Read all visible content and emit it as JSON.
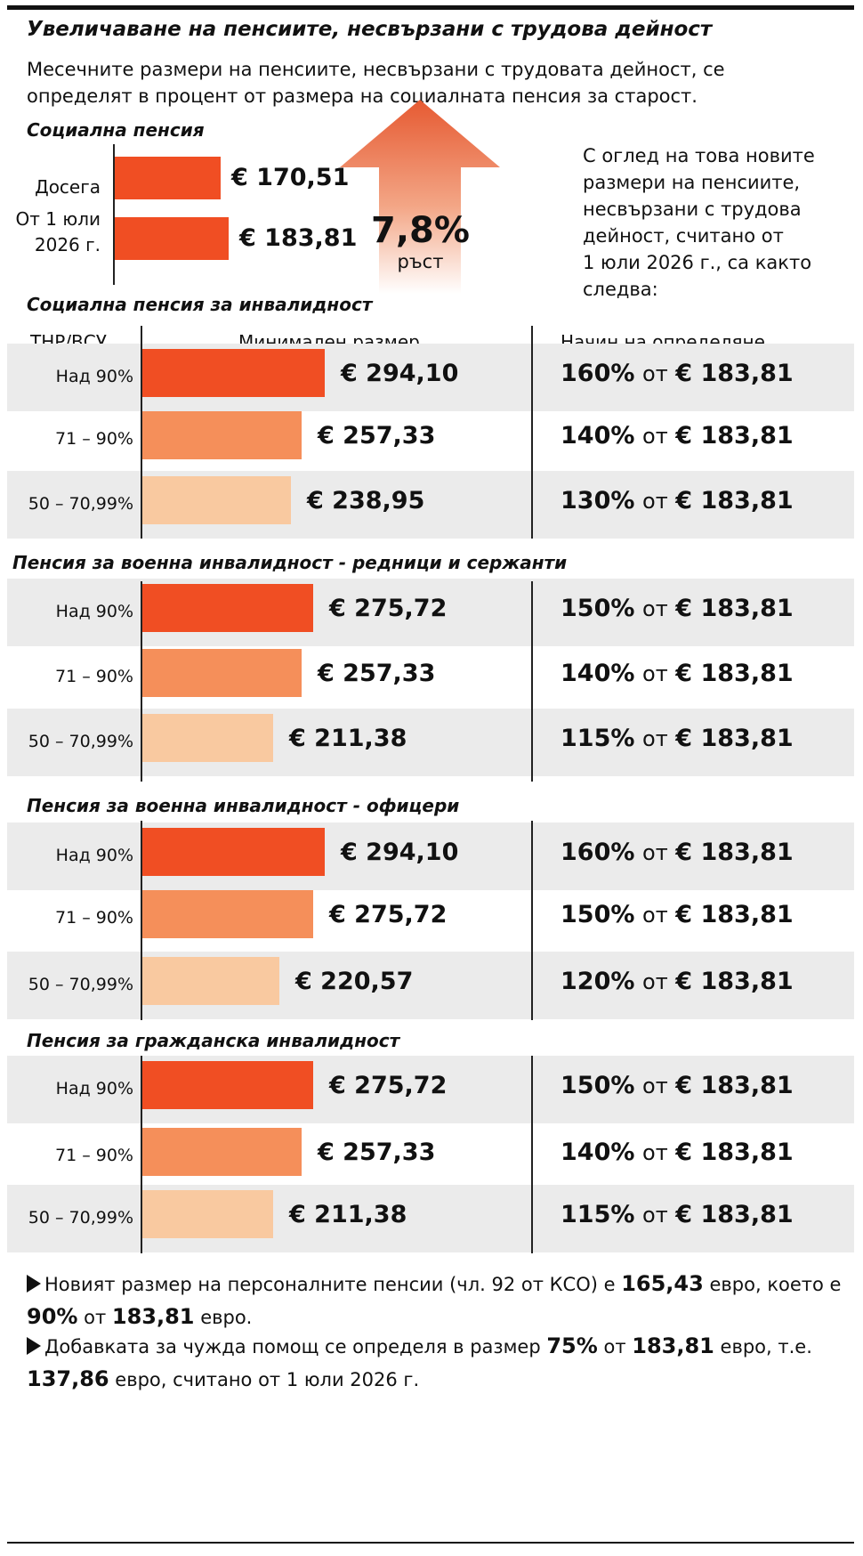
{
  "title": "Увеличаване на пенсиите, несвързани с трудова дейност",
  "intro": "Месечните размери на пенсиите, несвързани с трудовата дейност, се\nопределят в процент от размера на социалната пенсия за старост.",
  "growth": {
    "value": "7,8%",
    "label": "ръст"
  },
  "side_text": "С оглед на това новите\nразмери на пенсиите,\nнесвързани с трудова\nдейност, считано от\n1 юли 2026 г., са както\nследва:",
  "column_headers": {
    "category": "ТНР/ВСУ",
    "size": "Минимален размер",
    "method": "Начин на определяне"
  },
  "colors": {
    "level1": "#f04e23",
    "level2": "#f58f5a",
    "level3": "#f9c9a0",
    "row_bg": "#ebebeb"
  },
  "chart_data": [
    {
      "type": "bar",
      "title": "Социална пенсия",
      "categories": [
        "Досега",
        "От 1 юли 2026 г."
      ],
      "values": [
        170.51,
        183.81
      ],
      "value_labels": [
        "€ 170,51",
        "€ 183,81"
      ]
    },
    {
      "type": "bar",
      "title": "Социална пенсия за инвалидност",
      "categories": [
        "Над 90%",
        "71 – 90%",
        "50 – 70,99%"
      ],
      "values": [
        294.1,
        257.33,
        238.95
      ],
      "value_labels": [
        "€ 294,10",
        "€ 257,33",
        "€ 238,95"
      ],
      "percents": [
        "160%",
        "140%",
        "130%"
      ]
    },
    {
      "type": "bar",
      "title": "Пенсия за военна инвалидност - редници и сержанти",
      "categories": [
        "Над 90%",
        "71 – 90%",
        "50 – 70,99%"
      ],
      "values": [
        275.72,
        257.33,
        211.38
      ],
      "value_labels": [
        "€ 275,72",
        "€ 257,33",
        "€ 211,38"
      ],
      "percents": [
        "150%",
        "140%",
        "115%"
      ]
    },
    {
      "type": "bar",
      "title": "Пенсия за военна инвалидност - офицери",
      "categories": [
        "Над 90%",
        "71 – 90%",
        "50 – 70,99%"
      ],
      "values": [
        294.1,
        275.72,
        220.57
      ],
      "value_labels": [
        "€ 294,10",
        "€ 275,72",
        "€ 220,57"
      ],
      "percents": [
        "160%",
        "150%",
        "120%"
      ]
    },
    {
      "type": "bar",
      "title": "Пенсия за гражданска инвалидност",
      "categories": [
        "Над 90%",
        "71 – 90%",
        "50 – 70,99%"
      ],
      "values": [
        275.72,
        257.33,
        211.38
      ],
      "value_labels": [
        "€ 275,72",
        "€ 257,33",
        "€ 211,38"
      ],
      "percents": [
        "150%",
        "140%",
        "115%"
      ]
    }
  ],
  "method_mid": "от",
  "method_base": "€ 183,81",
  "notes": [
    {
      "p1": "Новият размер на персоналните пенсии (чл. 92 от КСО) е ",
      "b1": "165,43",
      "p2": " евро, което е ",
      "b2": "90%",
      "p3": " от ",
      "b3": "183,81",
      "p4": " евро."
    },
    {
      "p1": "Добавката за чужда помощ се определя в размер ",
      "b1": "75%",
      "p2": " от ",
      "b2": "183,81",
      "p3": " евро, т.е. ",
      "b3": "137,86",
      "p4": " евро, считано от 1 юли 2026 г."
    }
  ]
}
